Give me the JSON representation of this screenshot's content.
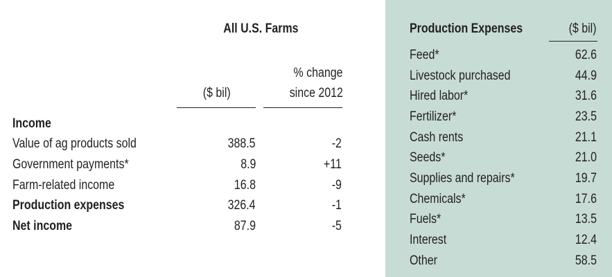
{
  "left_table": {
    "title": "All U.S. Farms",
    "col_value_header": "($ bil)",
    "col_change_header_line1": "% change",
    "col_change_header_line2": "since 2012",
    "section_heading": "Income",
    "rows": [
      {
        "label": "Value of ag products sold",
        "value": "388.5",
        "change": "-2",
        "bold": false
      },
      {
        "label": "Government payments*",
        "value": "8.9",
        "change": "+11",
        "bold": false
      },
      {
        "label": "Farm-related income",
        "value": "16.8",
        "change": "-9",
        "bold": false
      },
      {
        "label": "Production expenses",
        "value": "326.4",
        "change": "-1",
        "bold": true
      },
      {
        "label": "Net income",
        "value": "87.9",
        "change": "-5",
        "bold": true
      }
    ]
  },
  "expenses_panel": {
    "title": "Production Expenses",
    "unit_header": "($ bil)",
    "background_color": "#c7dcd4",
    "rows": [
      {
        "label": "Feed*",
        "value": "62.6"
      },
      {
        "label": "Livestock purchased",
        "value": "44.9"
      },
      {
        "label": "Hired labor*",
        "value": "31.6"
      },
      {
        "label": "Fertilizer*",
        "value": "23.5"
      },
      {
        "label": "Cash rents",
        "value": "21.1"
      },
      {
        "label": "Seeds*",
        "value": "21.0"
      },
      {
        "label": "Supplies and repairs*",
        "value": "19.7"
      },
      {
        "label": "Chemicals*",
        "value": "17.6"
      },
      {
        "label": "Fuels*",
        "value": "13.5"
      },
      {
        "label": "Interest",
        "value": "12.4"
      },
      {
        "label": "Other",
        "value": "58.5"
      }
    ]
  }
}
